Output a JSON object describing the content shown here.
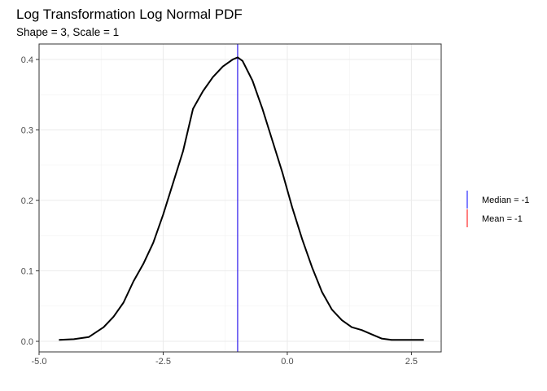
{
  "chart_data": {
    "type": "line",
    "title": "Log Transformation Log Normal PDF",
    "subtitle": "Shape = 3, Scale = 1",
    "xlabel": "",
    "ylabel": "",
    "xlim": [
      -5.0,
      3.1
    ],
    "ylim": [
      -0.015,
      0.422
    ],
    "grid": true,
    "x_ticks": [
      -5.0,
      -2.5,
      0.0,
      2.5
    ],
    "x_tick_labels": [
      "-5.0",
      "-2.5",
      "0.0",
      "2.5"
    ],
    "y_ticks": [
      0.0,
      0.1,
      0.2,
      0.3,
      0.4
    ],
    "y_tick_labels": [
      "0.0",
      "0.1",
      "0.2",
      "0.3",
      "0.4"
    ],
    "series": [
      {
        "color": "#000000",
        "x": [
          -4.6,
          -4.3,
          -4.0,
          -3.7,
          -3.5,
          -3.3,
          -3.1,
          -2.9,
          -2.7,
          -2.5,
          -2.3,
          -2.1,
          -1.9,
          -1.7,
          -1.5,
          -1.3,
          -1.1,
          -1.0,
          -0.9,
          -0.7,
          -0.5,
          -0.3,
          -0.1,
          0.1,
          0.3,
          0.5,
          0.7,
          0.9,
          1.1,
          1.3,
          1.5,
          1.7,
          1.9,
          2.1,
          2.3,
          2.5,
          2.75
        ],
        "y": [
          0.002,
          0.003,
          0.006,
          0.02,
          0.035,
          0.055,
          0.085,
          0.11,
          0.14,
          0.18,
          0.225,
          0.27,
          0.33,
          0.355,
          0.375,
          0.39,
          0.4,
          0.403,
          0.398,
          0.37,
          0.33,
          0.285,
          0.24,
          0.19,
          0.145,
          0.105,
          0.07,
          0.045,
          0.03,
          0.02,
          0.016,
          0.01,
          0.004,
          0.002,
          0.002,
          0.002,
          0.002
        ]
      }
    ],
    "vlines": [
      {
        "name": "Median = -1",
        "x": -1,
        "color": "#0000ff"
      },
      {
        "name": "Mean = -1",
        "x": -1,
        "color": "#ff0000"
      }
    ],
    "legend": {
      "placement": "right",
      "items": [
        {
          "label": "Median = -1",
          "color": "#0000ff"
        },
        {
          "label": "Mean = -1",
          "color": "#ff0000"
        }
      ]
    }
  }
}
